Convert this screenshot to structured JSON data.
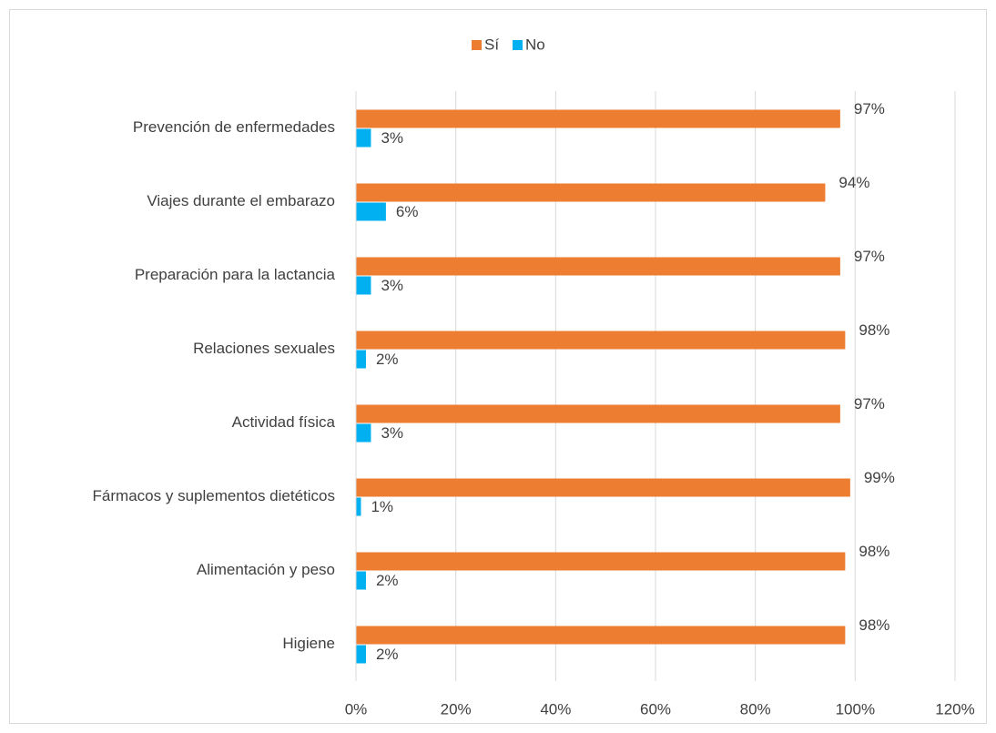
{
  "chart_data": {
    "type": "hbar",
    "categories": [
      "Prevención de enfermedades",
      "Viajes durante el embarazo",
      "Preparación para la lactancia",
      "Relaciones sexuales",
      "Actividad física",
      "Fármacos y suplementos dietéticos",
      "Alimentación y peso",
      "Higiene"
    ],
    "series": [
      {
        "name": "Sí",
        "color": "#ed7d31",
        "values": [
          97,
          94,
          97,
          98,
          97,
          99,
          98,
          98
        ],
        "value_labels": [
          "97%",
          "94%",
          "97%",
          "98%",
          "97%",
          "99%",
          "98%",
          "98%"
        ]
      },
      {
        "name": "No",
        "color": "#00b0f0",
        "values": [
          3,
          6,
          3,
          2,
          3,
          1,
          2,
          2
        ],
        "value_labels": [
          "3%",
          "6%",
          "3%",
          "2%",
          "3%",
          "1%",
          "2%",
          "2%"
        ]
      }
    ],
    "xlim": [
      0,
      120
    ],
    "xticks": [
      {
        "value": 0,
        "label": "0%"
      },
      {
        "value": 20,
        "label": "20%"
      },
      {
        "value": 40,
        "label": "40%"
      },
      {
        "value": 60,
        "label": "60%"
      },
      {
        "value": 80,
        "label": "80%"
      },
      {
        "value": 100,
        "label": "100%"
      },
      {
        "value": 120,
        "label": "120%"
      }
    ],
    "grid": true,
    "legend": "top"
  }
}
